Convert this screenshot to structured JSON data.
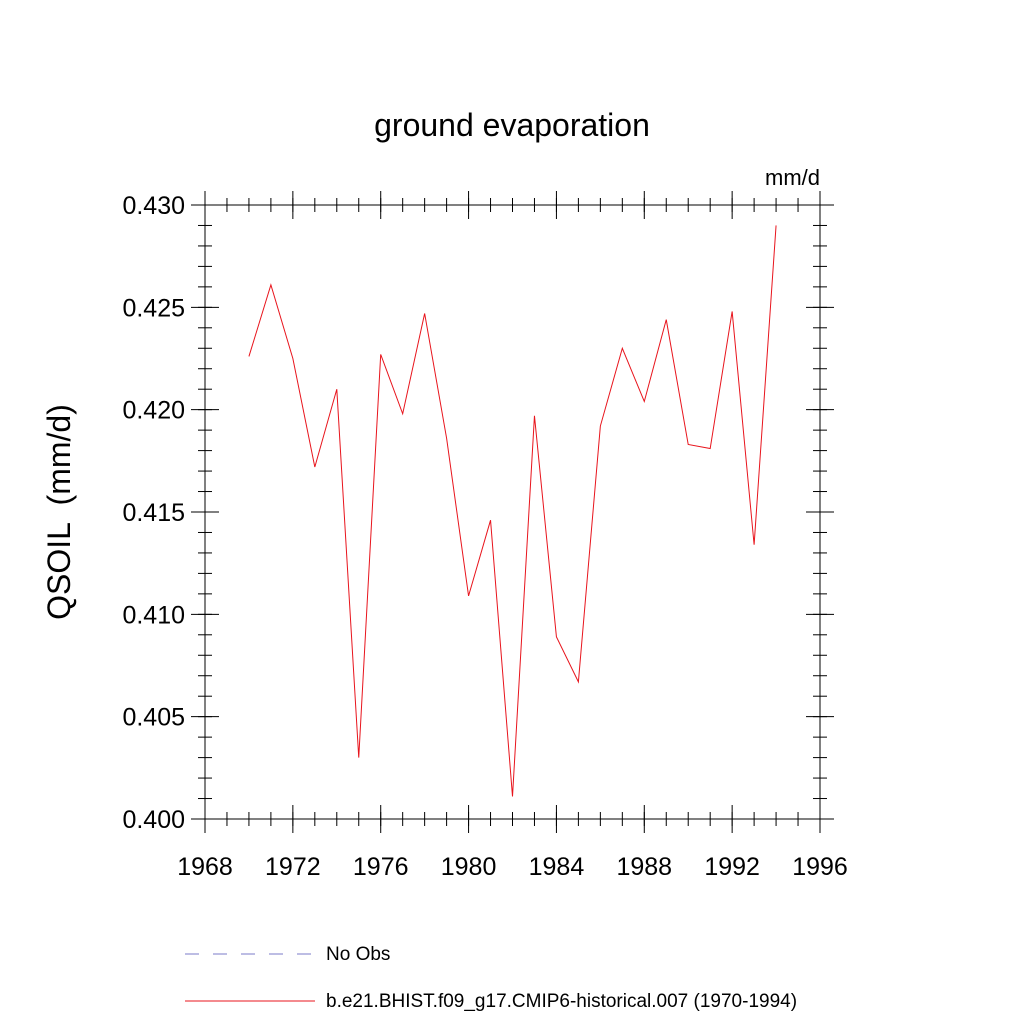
{
  "chart_data": {
    "type": "line",
    "title": "ground evaporation",
    "units_label": "mm/d",
    "ylabel": "QSOIL  (mm/d)",
    "xlabel": "",
    "xlim": [
      1968,
      1996
    ],
    "ylim": [
      0.4,
      0.43
    ],
    "x_ticks": [
      1968,
      1972,
      1976,
      1980,
      1984,
      1988,
      1992,
      1996
    ],
    "x_tick_labels": [
      "1968",
      "1972",
      "1976",
      "1980",
      "1984",
      "1988",
      "1992",
      "1996"
    ],
    "y_ticks": [
      0.4,
      0.405,
      0.41,
      0.415,
      0.42,
      0.425,
      0.43
    ],
    "y_tick_labels": [
      "0.400",
      "0.405",
      "0.410",
      "0.415",
      "0.420",
      "0.425",
      "0.430"
    ],
    "grid": false,
    "legend_position": "bottom",
    "series": [
      {
        "name": "b.e21.BHIST.f09_g17.CMIP6-historical.007 (1970-1994)",
        "color": "#e8141c",
        "style": "solid",
        "x": [
          1970,
          1971,
          1972,
          1973,
          1974,
          1975,
          1976,
          1977,
          1978,
          1979,
          1980,
          1981,
          1982,
          1983,
          1984,
          1985,
          1986,
          1987,
          1988,
          1989,
          1990,
          1991,
          1992,
          1993,
          1994
        ],
        "y": [
          0.4226,
          0.4261,
          0.4225,
          0.4172,
          0.421,
          0.403,
          0.4227,
          0.4198,
          0.4247,
          0.4186,
          0.4109,
          0.4146,
          0.4011,
          0.4197,
          0.4089,
          0.4067,
          0.4192,
          0.423,
          0.4204,
          0.4244,
          0.4183,
          0.4181,
          0.4248,
          0.4134,
          0.429
        ]
      }
    ],
    "legend": [
      {
        "label": "No Obs",
        "color": "#7b7bc8",
        "style": "dashed"
      },
      {
        "label": "b.e21.BHIST.f09_g17.CMIP6-historical.007 (1970-1994)",
        "color": "#e8141c",
        "style": "solid"
      }
    ]
  }
}
